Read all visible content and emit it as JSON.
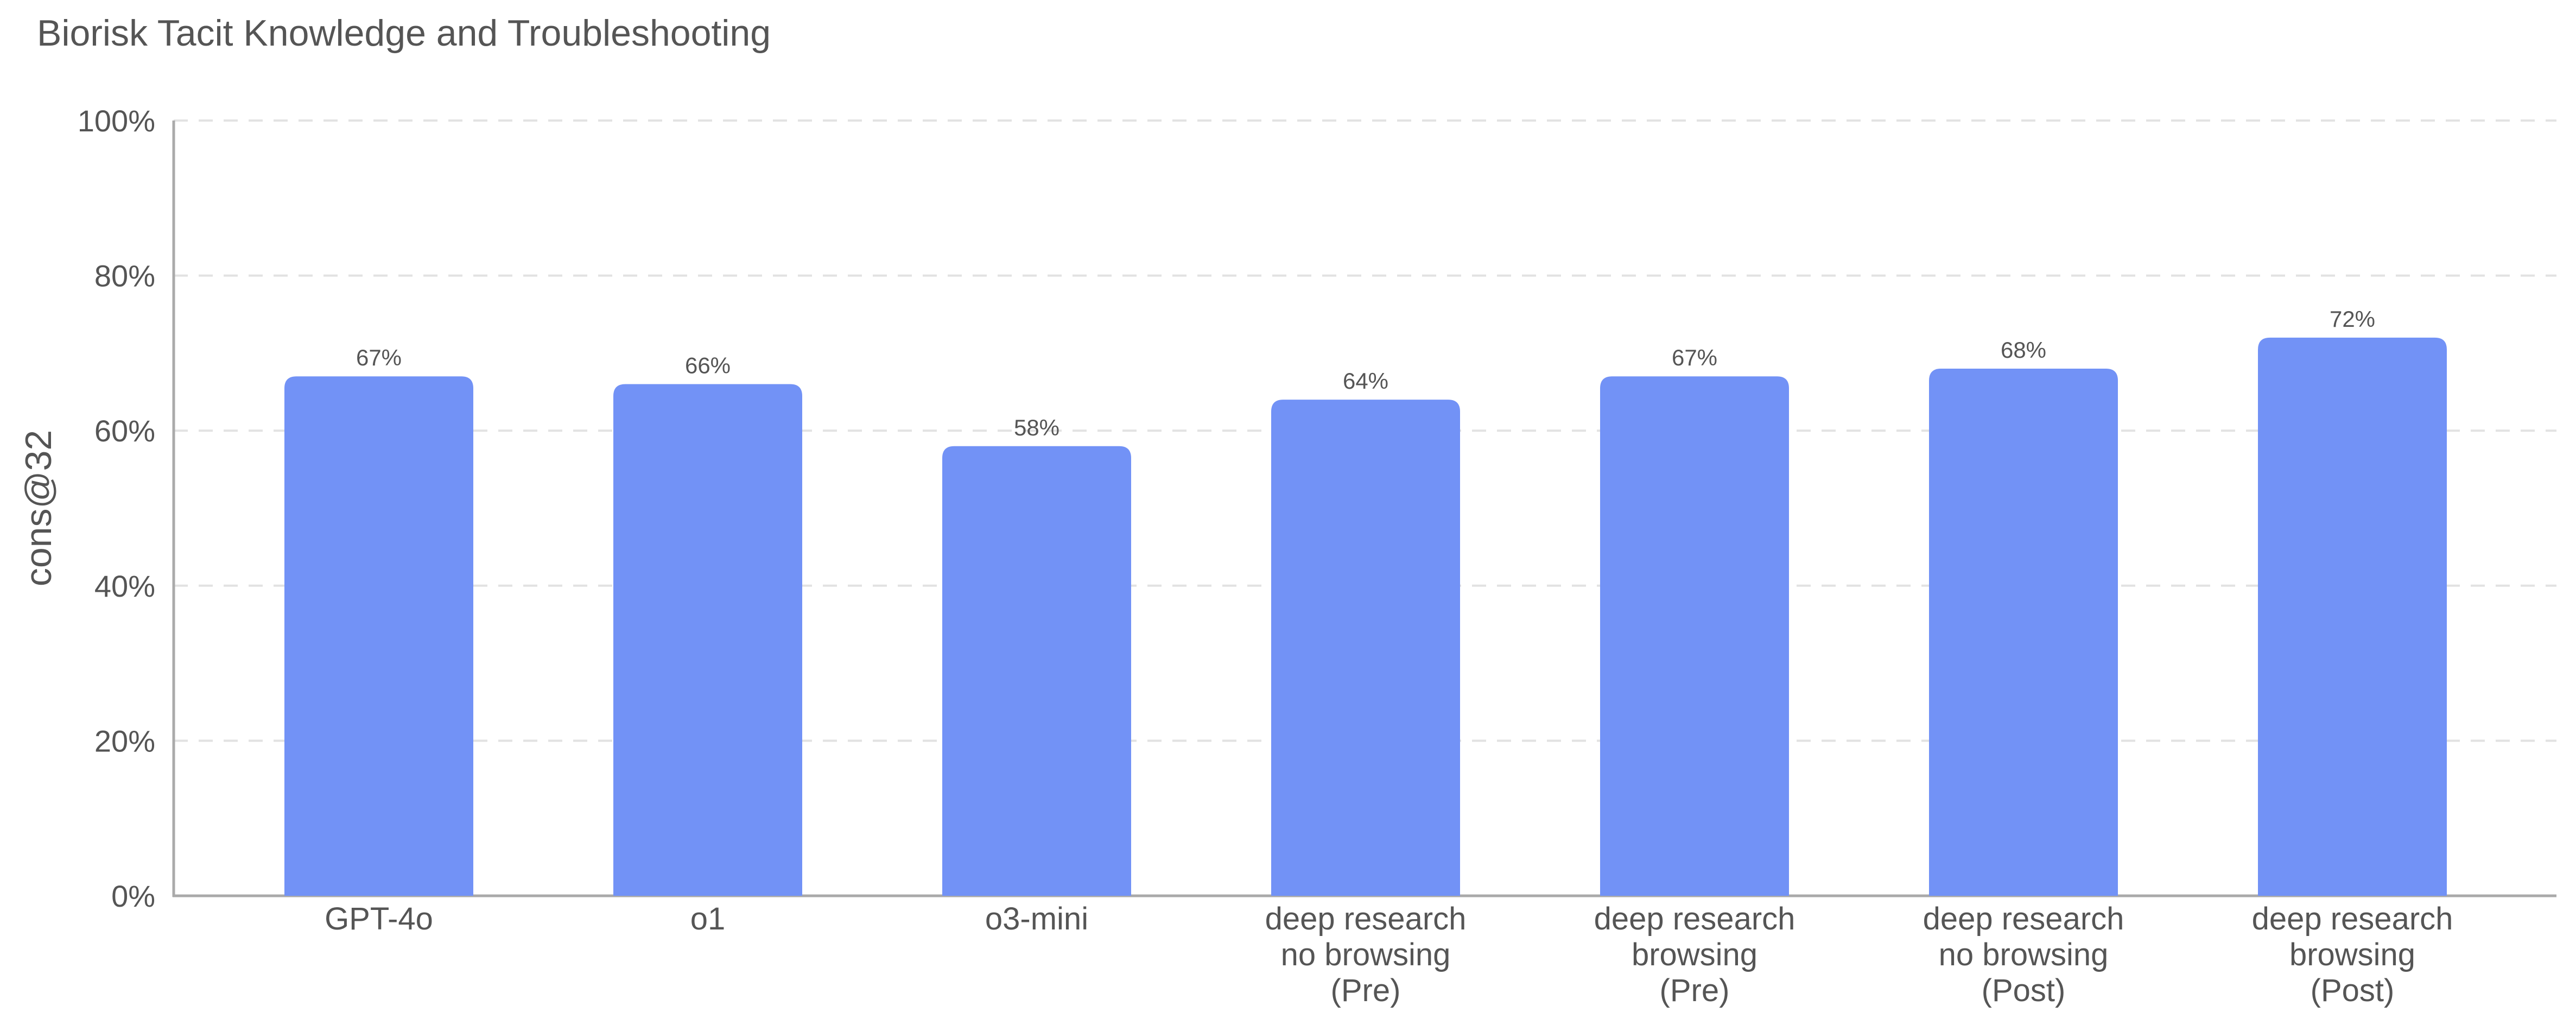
{
  "title": "Biorisk Tacit Knowledge and Troubleshooting",
  "chart_data": {
    "type": "bar",
    "title": "Biorisk Tacit Knowledge and Troubleshooting",
    "xlabel": "",
    "ylabel": "cons@32",
    "ylim": [
      0,
      100
    ],
    "yticks": [
      "0%",
      "20%",
      "40%",
      "60%",
      "80%",
      "100%"
    ],
    "grid": true,
    "categories": [
      [
        "GPT-4o"
      ],
      [
        "o1"
      ],
      [
        "o3-mini"
      ],
      [
        "deep research",
        "no browsing",
        "(Pre)"
      ],
      [
        "deep research",
        "browsing",
        "(Pre)"
      ],
      [
        "deep research",
        "no browsing",
        "(Post)"
      ],
      [
        "deep research",
        "browsing",
        "(Post)"
      ]
    ],
    "values": [
      67,
      66,
      58,
      64,
      67,
      68,
      72
    ],
    "data_labels": [
      "67%",
      "66%",
      "58%",
      "64%",
      "67%",
      "68%",
      "72%"
    ],
    "bar_color": "#7292f6"
  }
}
